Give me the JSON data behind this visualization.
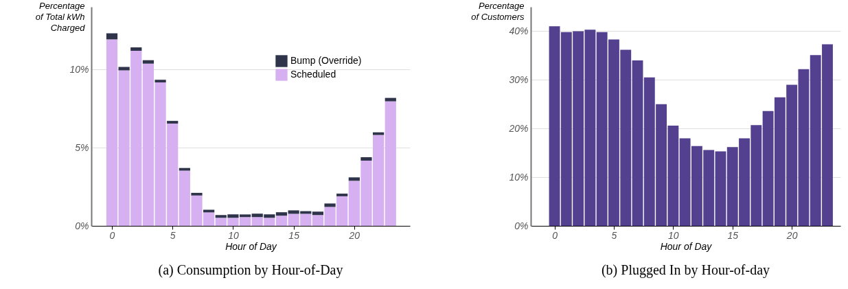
{
  "chart_data": [
    {
      "type": "bar",
      "title": "(a) Consumption by Hour-of-Day",
      "xlabel": "Hour of Day",
      "ylabel": "Percentage of Total kWh Charged",
      "stacked": true,
      "x": [
        0,
        1,
        2,
        3,
        4,
        5,
        6,
        7,
        8,
        9,
        10,
        11,
        12,
        13,
        14,
        15,
        16,
        17,
        18,
        19,
        20,
        21,
        22,
        23
      ],
      "series": [
        {
          "name": "Scheduled",
          "color": "#d7b0f2",
          "values": [
            11.92,
            9.94,
            11.19,
            10.37,
            9.17,
            6.54,
            3.53,
            1.94,
            0.86,
            0.52,
            0.52,
            0.56,
            0.56,
            0.52,
            0.65,
            0.77,
            0.77,
            0.69,
            1.21,
            1.89,
            2.88,
            4.17,
            5.81,
            7.96
          ]
        },
        {
          "name": "Bump (Override)",
          "color": "#2f344b",
          "values": [
            0.39,
            0.22,
            0.22,
            0.22,
            0.17,
            0.17,
            0.17,
            0.17,
            0.17,
            0.17,
            0.22,
            0.17,
            0.22,
            0.22,
            0.22,
            0.22,
            0.17,
            0.22,
            0.22,
            0.17,
            0.22,
            0.22,
            0.17,
            0.22
          ]
        }
      ],
      "xlim": [
        -1.7,
        24.6
      ],
      "xticks": [
        0,
        5,
        10,
        15,
        20
      ],
      "ylim": [
        0,
        14
      ],
      "yticks": [
        {
          "value": 0,
          "label": "0%"
        },
        {
          "value": 5,
          "label": "5%"
        },
        {
          "value": 10,
          "label": "10%"
        }
      ],
      "grid": "y",
      "legend": "top right"
    },
    {
      "type": "bar",
      "title": "(b) Plugged In by Hour-of-day",
      "xlabel": "Hour of Day",
      "ylabel": "Percentage of Customers",
      "x": [
        0,
        1,
        2,
        3,
        4,
        5,
        6,
        7,
        8,
        9,
        10,
        11,
        12,
        13,
        14,
        15,
        16,
        17,
        18,
        19,
        20,
        21,
        22,
        23
      ],
      "series": [
        {
          "color": "#53418f",
          "values": [
            41.0,
            39.8,
            40.0,
            40.3,
            39.8,
            38.3,
            36.2,
            34.0,
            30.5,
            25.0,
            20.6,
            18.0,
            16.4,
            15.6,
            15.3,
            16.2,
            18.0,
            20.7,
            23.6,
            26.4,
            29.0,
            32.2,
            35.1,
            37.3
          ]
        }
      ],
      "xlim": [
        -2,
        24.1
      ],
      "xticks": [
        0,
        5,
        10,
        15,
        20
      ],
      "ylim": [
        0,
        45
      ],
      "yticks": [
        {
          "value": 0,
          "label": "0%"
        },
        {
          "value": 10,
          "label": "10%"
        },
        {
          "value": 20,
          "label": "20%"
        },
        {
          "value": 30,
          "label": "30%"
        },
        {
          "value": 40,
          "label": "40%"
        }
      ],
      "grid": "y"
    }
  ]
}
